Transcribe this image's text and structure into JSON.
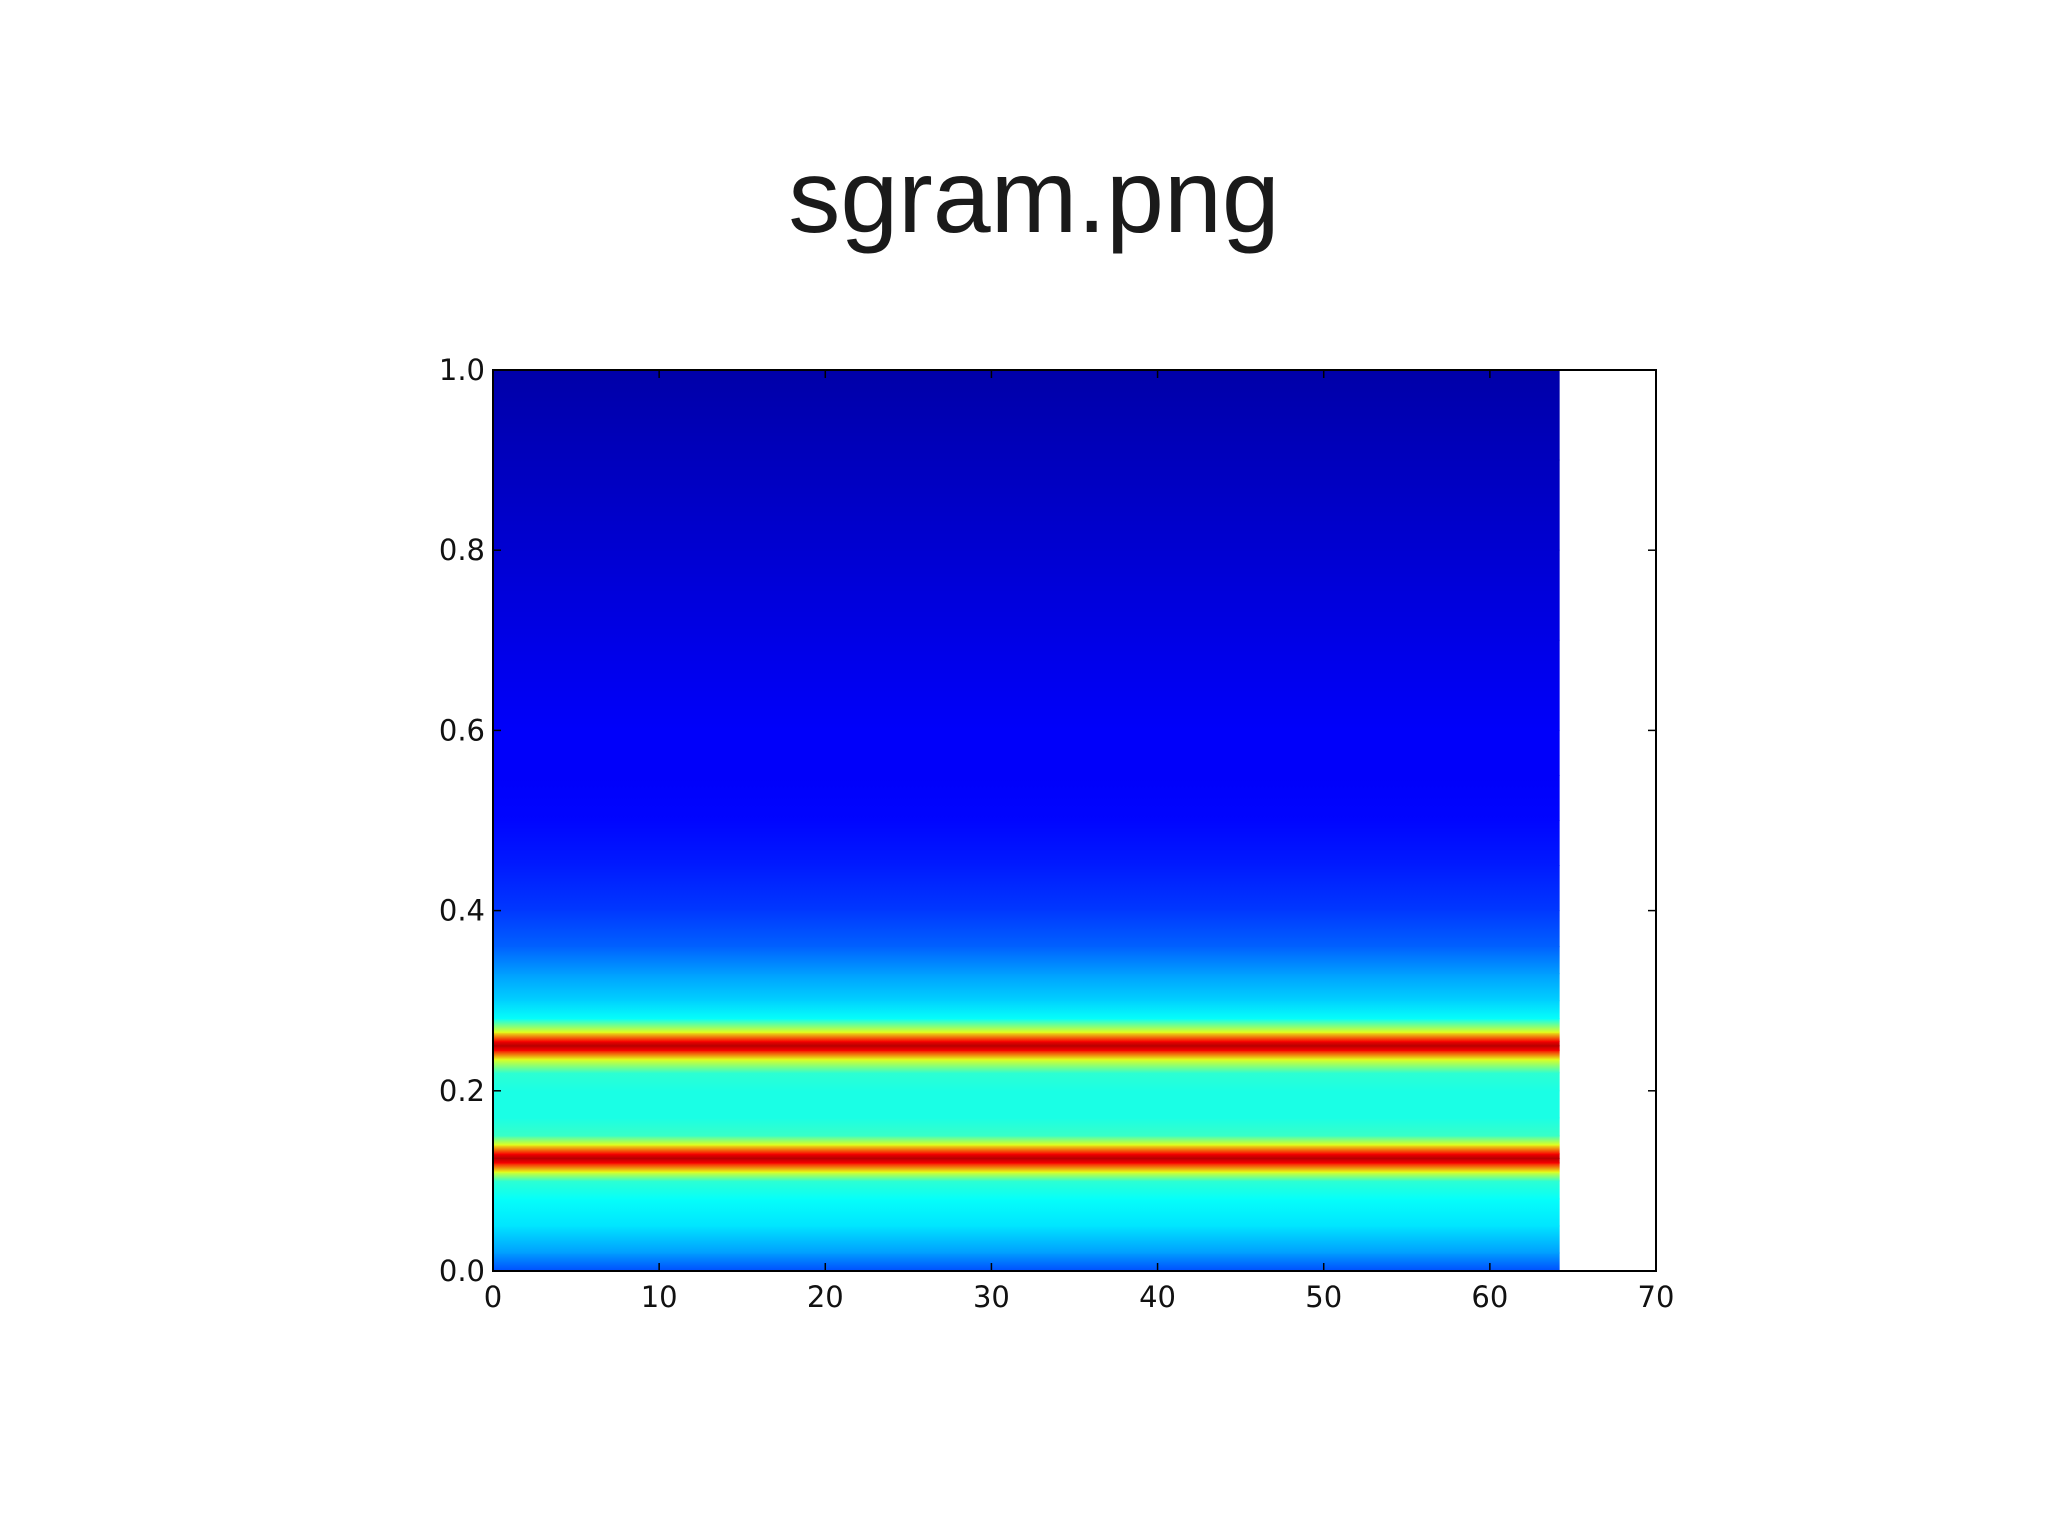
{
  "chart_data": {
    "type": "spectrogram",
    "title": "sgram.png",
    "colormap": "jet",
    "x_extent": [
      0,
      64.2
    ],
    "y": [
      0,
      0.02,
      0.05,
      0.08,
      0.1,
      0.11,
      0.12,
      0.125,
      0.13,
      0.14,
      0.15,
      0.17,
      0.2,
      0.22,
      0.235,
      0.245,
      0.25,
      0.255,
      0.265,
      0.28,
      0.3,
      0.33,
      0.36,
      0.4,
      0.45,
      0.5,
      0.55,
      0.6,
      0.7,
      0.8,
      0.9,
      1.0
    ],
    "values": [
      0.2,
      0.28,
      0.35,
      0.38,
      0.42,
      0.6,
      0.88,
      0.95,
      0.88,
      0.6,
      0.43,
      0.4,
      0.4,
      0.42,
      0.6,
      0.88,
      0.95,
      0.88,
      0.6,
      0.38,
      0.33,
      0.28,
      0.22,
      0.18,
      0.15,
      0.13,
      0.12,
      0.12,
      0.1,
      0.08,
      0.06,
      0.04
    ],
    "xlim": [
      0,
      70
    ],
    "ylim": [
      0,
      1
    ],
    "xticks": [
      0,
      10,
      20,
      30,
      40,
      50,
      60,
      70
    ],
    "yticks": [
      {
        "value": 0,
        "label": "0.0"
      },
      {
        "value": 0.2,
        "label": "0.2"
      },
      {
        "value": 0.4,
        "label": "0.4"
      },
      {
        "value": 0.6,
        "label": "0.6"
      },
      {
        "value": 0.8,
        "label": "0.8"
      },
      {
        "value": 1,
        "label": "1.0"
      }
    ]
  }
}
